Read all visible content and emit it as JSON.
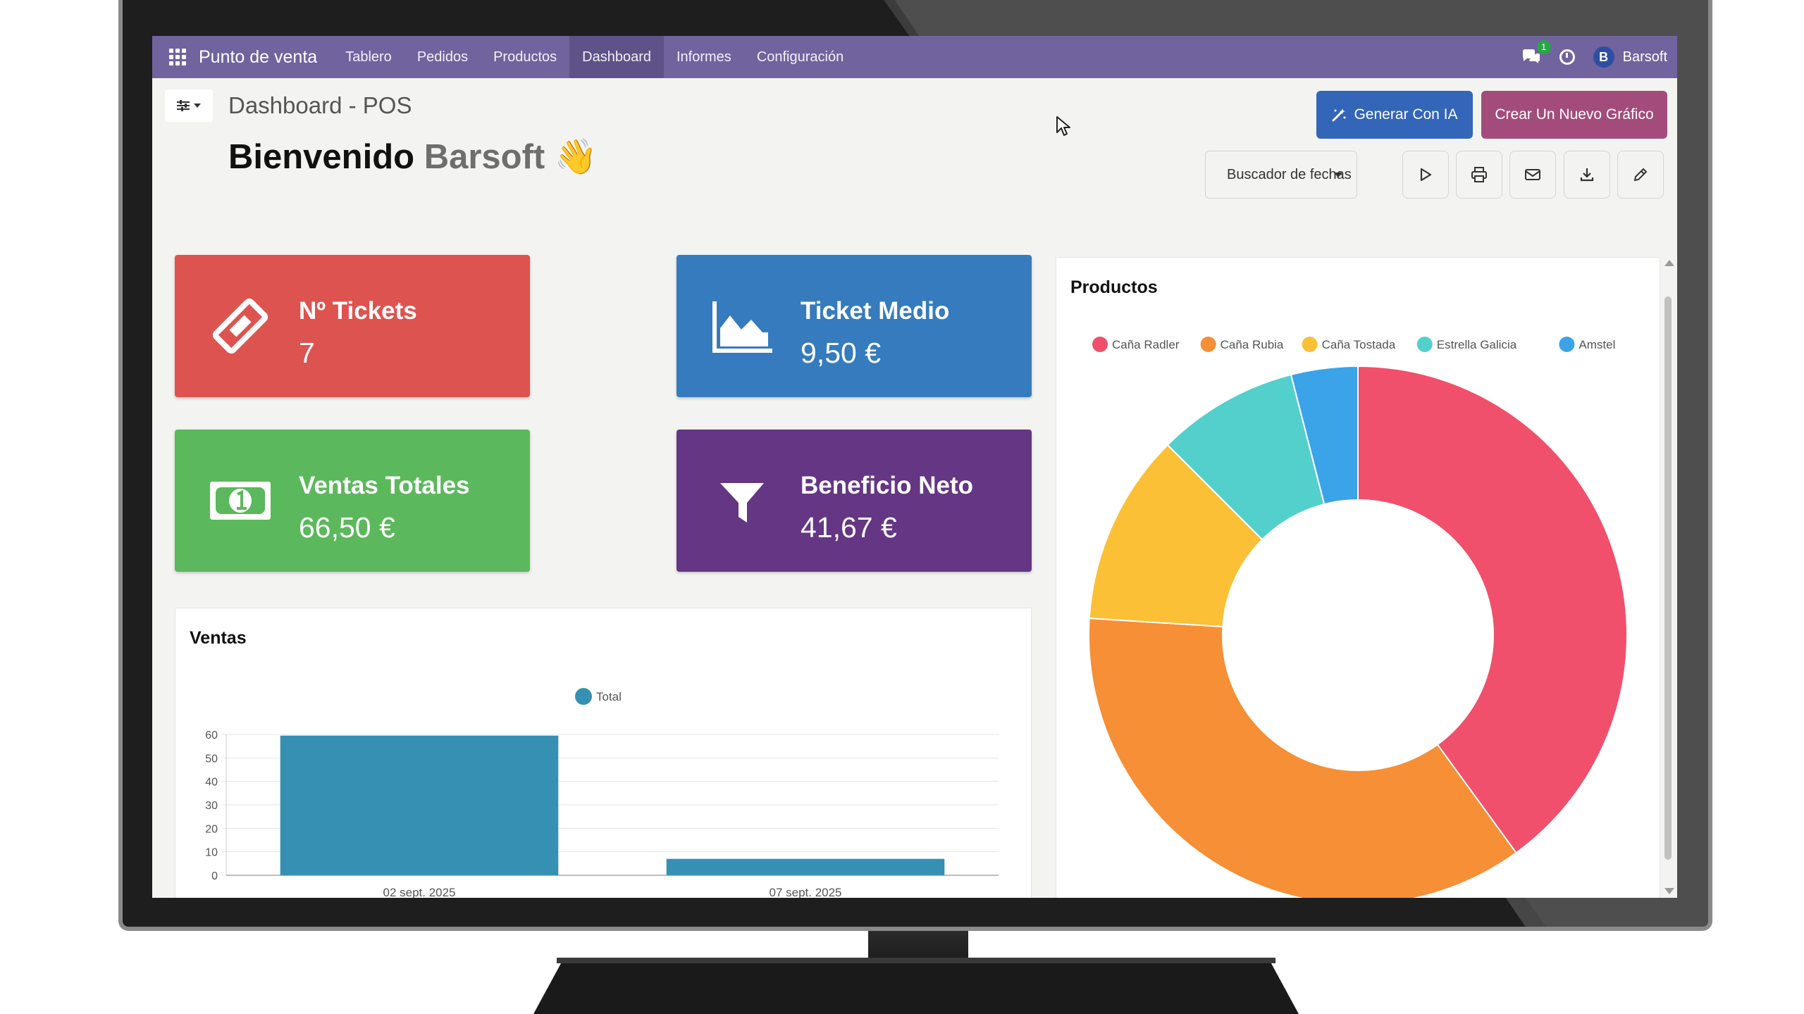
{
  "navbar": {
    "brand": "Punto de venta",
    "menu": [
      "Tablero",
      "Pedidos",
      "Productos",
      "Dashboard",
      "Informes",
      "Configuración"
    ],
    "active": "Dashboard",
    "chat_badge": "1",
    "user_initial": "B",
    "user_name": "Barsoft"
  },
  "header": {
    "breadcrumb": "Dashboard - POS",
    "welcome_prefix": "Bienvenido",
    "welcome_user": "Barsoft",
    "welcome_emoji": "👋"
  },
  "actions": {
    "generate_ai": "Generar Con IA",
    "new_chart": "Crear Un Nuevo Gráfico",
    "date_filter": "Buscador de fechas"
  },
  "kpis": {
    "tickets": {
      "title": "Nº Tickets",
      "value": "7",
      "color": "#dd534f"
    },
    "avg_ticket": {
      "title": "Ticket Medio",
      "value": "9,50 €",
      "color": "#357bbd"
    },
    "total_sales": {
      "title": "Ventas Totales",
      "value": "66,50 €",
      "color": "#5cb85c"
    },
    "net_profit": {
      "title": "Beneficio Neto",
      "value": "41,67 €",
      "color": "#643684"
    }
  },
  "chart_data": [
    {
      "type": "bar",
      "title": "Ventas",
      "categories": [
        "02 sept. 2025",
        "07 sept. 2025"
      ],
      "series": [
        {
          "name": "Total",
          "values": [
            59.5,
            7
          ],
          "color": "#3690b3"
        }
      ],
      "ylim": [
        0,
        60
      ],
      "yticks": [
        0,
        10,
        20,
        30,
        40,
        50,
        60
      ],
      "legend": "top",
      "grid": true
    },
    {
      "type": "pie",
      "variant": "doughnut",
      "title": "Productos",
      "labels": [
        "Caña Radler",
        "Caña Rubia",
        "Caña Tostada",
        "Estrella Galicia",
        "Amstel"
      ],
      "values": [
        40,
        36,
        11.5,
        8.5,
        4
      ],
      "colors": [
        "#f0506b",
        "#f68f35",
        "#fbc035",
        "#53d0cc",
        "#3ba3e8"
      ],
      "legend": "top"
    }
  ]
}
